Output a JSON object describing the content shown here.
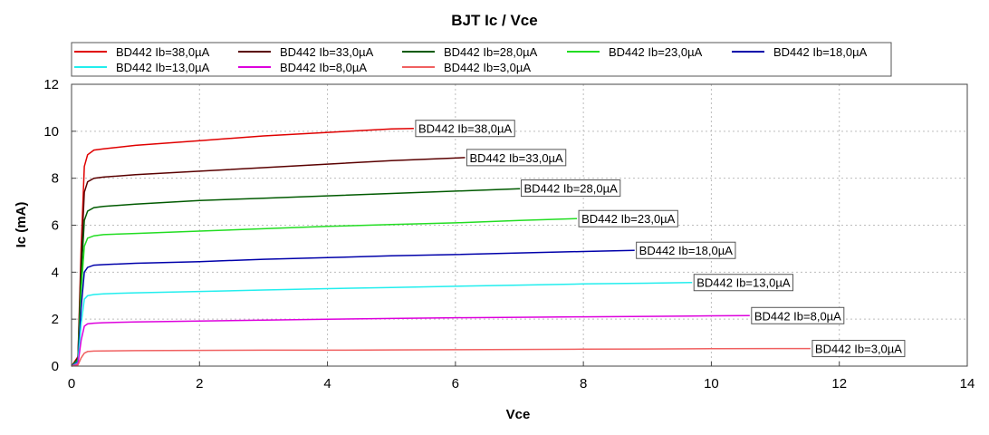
{
  "chart_data": {
    "type": "line",
    "title": "BJT Ic / Vce",
    "xlabel": "Vce",
    "ylabel": "Ic (mA)",
    "xlim": [
      0,
      14
    ],
    "ylim": [
      0,
      12
    ],
    "xticks": [
      "0",
      "2",
      "4",
      "6",
      "8",
      "10",
      "12",
      "14"
    ],
    "yticks": [
      "0",
      "2",
      "4",
      "6",
      "8",
      "10",
      "12"
    ],
    "grid": true,
    "legend_position": "top",
    "series": [
      {
        "name": "BD442 Ib=38,0µA",
        "color": "#e00000",
        "label": "BD442 Ib=38,0µA",
        "points": [
          [
            0,
            0
          ],
          [
            0.1,
            0.4
          ],
          [
            0.15,
            5.0
          ],
          [
            0.2,
            8.5
          ],
          [
            0.25,
            9.0
          ],
          [
            0.35,
            9.2
          ],
          [
            0.5,
            9.25
          ],
          [
            1,
            9.4
          ],
          [
            2,
            9.6
          ],
          [
            3,
            9.8
          ],
          [
            4,
            9.95
          ],
          [
            5,
            10.1
          ],
          [
            5.35,
            10.12
          ]
        ]
      },
      {
        "name": "BD442 Ib=33,0µA",
        "color": "#5a0000",
        "label": "BD442 Ib=33,0µA",
        "points": [
          [
            0,
            0
          ],
          [
            0.1,
            0.35
          ],
          [
            0.15,
            4.5
          ],
          [
            0.2,
            7.4
          ],
          [
            0.25,
            7.85
          ],
          [
            0.35,
            8.0
          ],
          [
            0.5,
            8.05
          ],
          [
            1,
            8.15
          ],
          [
            2,
            8.3
          ],
          [
            3,
            8.45
          ],
          [
            4,
            8.6
          ],
          [
            5,
            8.75
          ],
          [
            6.15,
            8.88
          ]
        ]
      },
      {
        "name": "BD442 Ib=28,0µA",
        "color": "#005a00",
        "label": "BD442 Ib=28,0µA",
        "points": [
          [
            0,
            0
          ],
          [
            0.1,
            0.3
          ],
          [
            0.15,
            3.8
          ],
          [
            0.2,
            6.2
          ],
          [
            0.25,
            6.6
          ],
          [
            0.35,
            6.75
          ],
          [
            0.5,
            6.8
          ],
          [
            1,
            6.9
          ],
          [
            2,
            7.05
          ],
          [
            3,
            7.15
          ],
          [
            4,
            7.25
          ],
          [
            5,
            7.35
          ],
          [
            6,
            7.45
          ],
          [
            7,
            7.55
          ],
          [
            7.0,
            7.58
          ]
        ]
      },
      {
        "name": "BD442 Ib=23,0µA",
        "color": "#22dd22",
        "label": "BD442 Ib=23,0µA",
        "points": [
          [
            0,
            0
          ],
          [
            0.1,
            0.25
          ],
          [
            0.15,
            3.2
          ],
          [
            0.2,
            5.1
          ],
          [
            0.25,
            5.45
          ],
          [
            0.35,
            5.55
          ],
          [
            0.5,
            5.6
          ],
          [
            1,
            5.65
          ],
          [
            2,
            5.75
          ],
          [
            3,
            5.85
          ],
          [
            4,
            5.95
          ],
          [
            5,
            6.03
          ],
          [
            6,
            6.1
          ],
          [
            7,
            6.2
          ],
          [
            7.9,
            6.28
          ]
        ]
      },
      {
        "name": "BD442 Ib=18,0µA",
        "color": "#0000aa",
        "label": "BD442 Ib=18,0µA",
        "points": [
          [
            0,
            0
          ],
          [
            0.1,
            0.2
          ],
          [
            0.15,
            2.5
          ],
          [
            0.2,
            4.0
          ],
          [
            0.25,
            4.2
          ],
          [
            0.35,
            4.3
          ],
          [
            0.5,
            4.32
          ],
          [
            1,
            4.38
          ],
          [
            2,
            4.45
          ],
          [
            3,
            4.55
          ],
          [
            4,
            4.62
          ],
          [
            5,
            4.7
          ],
          [
            6,
            4.75
          ],
          [
            7,
            4.82
          ],
          [
            8,
            4.88
          ],
          [
            8.8,
            4.93
          ]
        ]
      },
      {
        "name": "BD442 Ib=13,0µA",
        "color": "#22eeee",
        "label": "BD442 Ib=13,0µA",
        "points": [
          [
            0,
            0
          ],
          [
            0.1,
            0.15
          ],
          [
            0.15,
            1.8
          ],
          [
            0.2,
            2.85
          ],
          [
            0.25,
            3.0
          ],
          [
            0.35,
            3.05
          ],
          [
            0.5,
            3.08
          ],
          [
            1,
            3.12
          ],
          [
            2,
            3.18
          ],
          [
            3,
            3.24
          ],
          [
            4,
            3.3
          ],
          [
            5,
            3.35
          ],
          [
            6,
            3.4
          ],
          [
            7,
            3.45
          ],
          [
            8,
            3.5
          ],
          [
            9,
            3.53
          ],
          [
            9.7,
            3.56
          ]
        ]
      },
      {
        "name": "BD442 Ib=8,0µA",
        "color": "#dd00dd",
        "label": "BD442 Ib=8,0µA",
        "points": [
          [
            0,
            0
          ],
          [
            0.1,
            0.1
          ],
          [
            0.15,
            1.1
          ],
          [
            0.2,
            1.7
          ],
          [
            0.25,
            1.8
          ],
          [
            0.35,
            1.83
          ],
          [
            0.5,
            1.85
          ],
          [
            1,
            1.88
          ],
          [
            2,
            1.92
          ],
          [
            3,
            1.96
          ],
          [
            4,
            2.0
          ],
          [
            5,
            2.03
          ],
          [
            6,
            2.06
          ],
          [
            7,
            2.08
          ],
          [
            8,
            2.1
          ],
          [
            9,
            2.12
          ],
          [
            10,
            2.14
          ],
          [
            10.6,
            2.15
          ]
        ]
      },
      {
        "name": "BD442 Ib=3,0µA",
        "color": "#f06060",
        "label": "BD442 Ib=3,0µA",
        "points": [
          [
            0,
            0
          ],
          [
            0.1,
            0.05
          ],
          [
            0.15,
            0.35
          ],
          [
            0.2,
            0.55
          ],
          [
            0.25,
            0.62
          ],
          [
            0.35,
            0.64
          ],
          [
            0.5,
            0.65
          ],
          [
            1,
            0.66
          ],
          [
            2,
            0.67
          ],
          [
            3,
            0.68
          ],
          [
            4,
            0.68
          ],
          [
            5,
            0.69
          ],
          [
            6,
            0.7
          ],
          [
            7,
            0.71
          ],
          [
            8,
            0.72
          ],
          [
            9,
            0.73
          ],
          [
            10,
            0.74
          ],
          [
            11,
            0.75
          ],
          [
            11.55,
            0.75
          ]
        ]
      }
    ]
  }
}
